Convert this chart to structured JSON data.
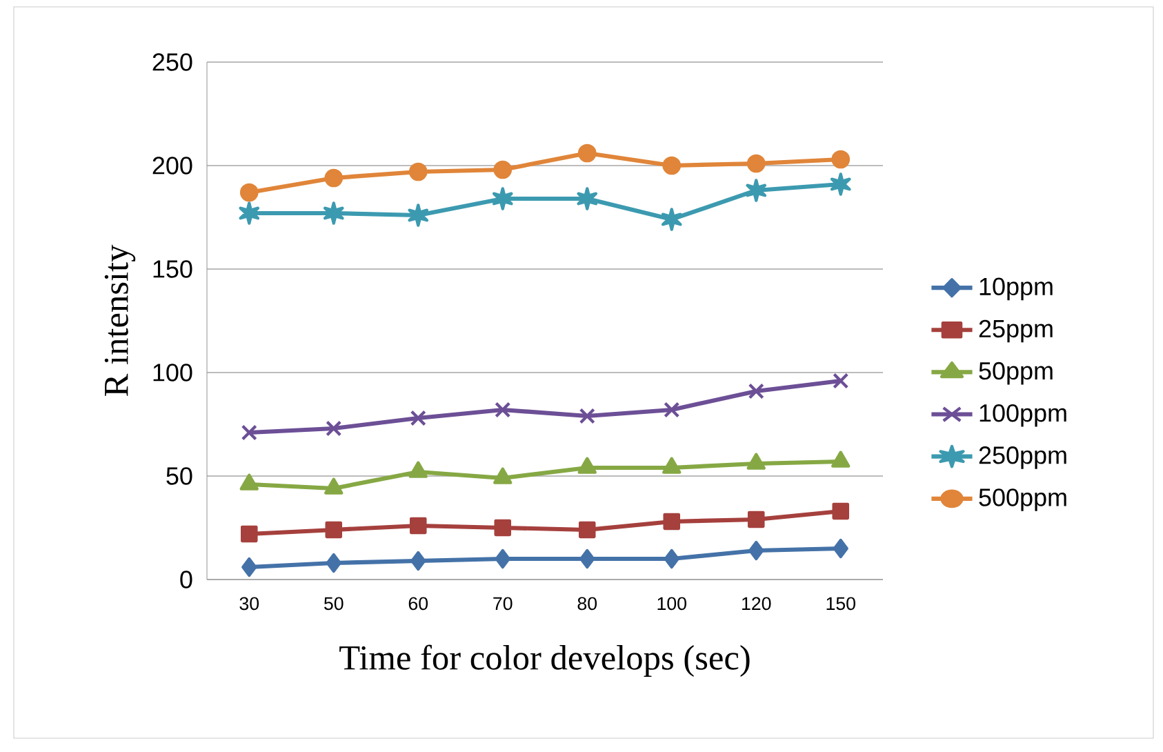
{
  "chart_data": {
    "type": "line",
    "xlabel": "Time for color develops (sec)",
    "ylabel": "R intensity",
    "categories": [
      "30",
      "50",
      "60",
      "70",
      "80",
      "100",
      "120",
      "150"
    ],
    "ylim": [
      0,
      250
    ],
    "yticks": [
      0,
      50,
      100,
      150,
      200,
      250
    ],
    "grid": "y",
    "legend": "right",
    "series": [
      {
        "name": "10ppm",
        "color": "#4472a8",
        "marker": "diamond",
        "values": [
          6,
          8,
          9,
          10,
          10,
          10,
          14,
          15
        ]
      },
      {
        "name": "25ppm",
        "color": "#a5403d",
        "marker": "square",
        "values": [
          22,
          24,
          26,
          25,
          24,
          28,
          29,
          33
        ]
      },
      {
        "name": "50ppm",
        "color": "#86a844",
        "marker": "triangle",
        "values": [
          46,
          44,
          52,
          49,
          54,
          54,
          56,
          57
        ]
      },
      {
        "name": "100ppm",
        "color": "#6c4f96",
        "marker": "cross",
        "values": [
          71,
          73,
          78,
          82,
          79,
          82,
          91,
          96
        ]
      },
      {
        "name": "250ppm",
        "color": "#3c9ab0",
        "marker": "star",
        "values": [
          177,
          177,
          176,
          184,
          184,
          174,
          188,
          191
        ]
      },
      {
        "name": "500ppm",
        "color": "#e08539",
        "marker": "circle",
        "values": [
          187,
          194,
          197,
          198,
          206,
          200,
          201,
          203
        ]
      }
    ]
  }
}
